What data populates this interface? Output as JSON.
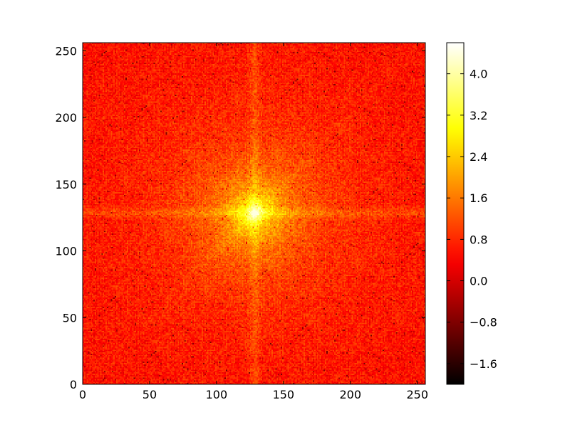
{
  "chart_data": {
    "type": "heatmap",
    "description_of_values": "log-magnitude 2D spectrum, centered peak",
    "colormap": "hot",
    "x_range": [
      0,
      256
    ],
    "y_range": [
      0,
      256
    ],
    "x_ticks": [
      0,
      50,
      100,
      150,
      200,
      250
    ],
    "y_ticks": [
      0,
      50,
      100,
      150,
      200,
      250
    ],
    "colorbar": {
      "range": [
        -2.0,
        4.6
      ],
      "ticks": [
        -1.6,
        -0.8,
        0.0,
        0.8,
        1.6,
        2.4,
        3.2,
        4.0
      ],
      "tick_labels": [
        "−1.6",
        "−0.8",
        "0.0",
        "0.8",
        "1.6",
        "2.4",
        "3.2",
        "4.0"
      ]
    },
    "grid_size": [
      256,
      256
    ],
    "center": [
      128,
      128
    ],
    "peak_value": 4.0,
    "background_value": 0.9,
    "cross_bands": {
      "vertical_x": 128,
      "horizontal_y": 128,
      "half_width": 5,
      "boost": 0.45
    },
    "title": "",
    "xlabel": "",
    "ylabel": ""
  }
}
